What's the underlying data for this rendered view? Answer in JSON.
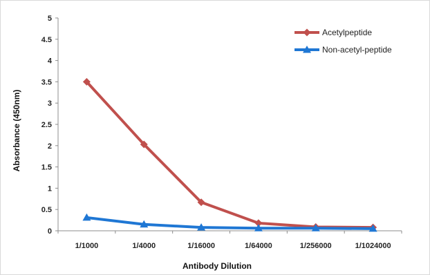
{
  "chart_data": {
    "type": "line",
    "title": "",
    "xlabel": "Antibody Dilution",
    "ylabel": "Absorbance (450nm)",
    "ylim": [
      0,
      5
    ],
    "yticks": [
      "0",
      "0.5",
      "1",
      "1.5",
      "2",
      "2.5",
      "3",
      "3.5",
      "4",
      "4.5",
      "5"
    ],
    "categories": [
      "1/1000",
      "1/4000",
      "1/16000",
      "1/64000",
      "1/256000",
      "1/1024000"
    ],
    "grid": false,
    "legend_position": "top-right",
    "series": [
      {
        "name": "Acetylpeptide",
        "color": "#c0504d",
        "marker": "diamond",
        "values": [
          3.5,
          2.03,
          0.67,
          0.18,
          0.09,
          0.08
        ]
      },
      {
        "name": "Non-acetyl-peptide",
        "color": "#1f77d4",
        "marker": "triangle",
        "values": [
          0.31,
          0.15,
          0.08,
          0.06,
          0.06,
          0.05
        ]
      }
    ]
  }
}
